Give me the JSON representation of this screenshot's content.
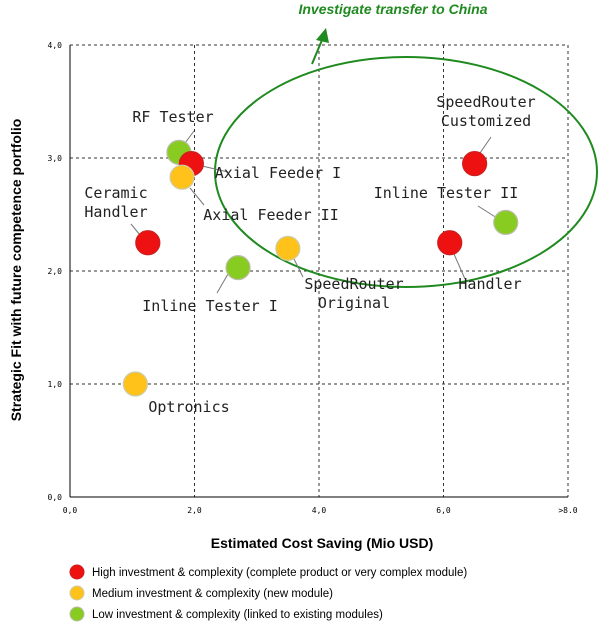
{
  "chart_data": {
    "type": "scatter",
    "title": "",
    "xlabel": "Estimated Cost Saving (Mio USD)",
    "ylabel": "Strategic Fit with future competence portfolio",
    "xlim": [
      0,
      8
    ],
    "ylim": [
      0,
      4
    ],
    "grid": true,
    "x_ticks": [
      "0,0",
      "2,0",
      "4,0",
      "6,0",
      ">8.0"
    ],
    "y_ticks": [
      "0,0",
      "1,0",
      "2,0",
      "3,0",
      "4,0"
    ],
    "annotation": "Investigate transfer to China",
    "colors": {
      "high": "#ee1111",
      "medium": "#ffc21a",
      "low": "#88cc22"
    },
    "points": [
      {
        "label": "RF Tester",
        "x": 1.75,
        "y": 3.05,
        "category": "low"
      },
      {
        "label": "Axial Feeder I",
        "x": 1.95,
        "y": 2.95,
        "category": "high"
      },
      {
        "label": "Axial Feeder II",
        "x": 1.8,
        "y": 2.83,
        "category": "medium"
      },
      {
        "label": "Ceramic Handler",
        "x": 1.25,
        "y": 2.25,
        "category": "high"
      },
      {
        "label": "Inline Tester I",
        "x": 2.7,
        "y": 2.03,
        "category": "low"
      },
      {
        "label": "SpeedRouter Original",
        "x": 3.5,
        "y": 2.2,
        "category": "medium"
      },
      {
        "label": "SpeedRouter Customized",
        "x": 6.5,
        "y": 2.95,
        "category": "high"
      },
      {
        "label": "Inline Tester II",
        "x": 7.0,
        "y": 2.43,
        "category": "low"
      },
      {
        "label": "Handler",
        "x": 6.1,
        "y": 2.25,
        "category": "high"
      },
      {
        "label": "Optronics",
        "x": 1.05,
        "y": 1.0,
        "category": "medium"
      }
    ],
    "legend": [
      {
        "category": "high",
        "label": "High investment & complexity (complete product or very complex module)"
      },
      {
        "category": "medium",
        "label": "Medium investment & complexity (new module)"
      },
      {
        "category": "low",
        "label": "Low investment & complexity (linked to existing modules)"
      }
    ]
  }
}
